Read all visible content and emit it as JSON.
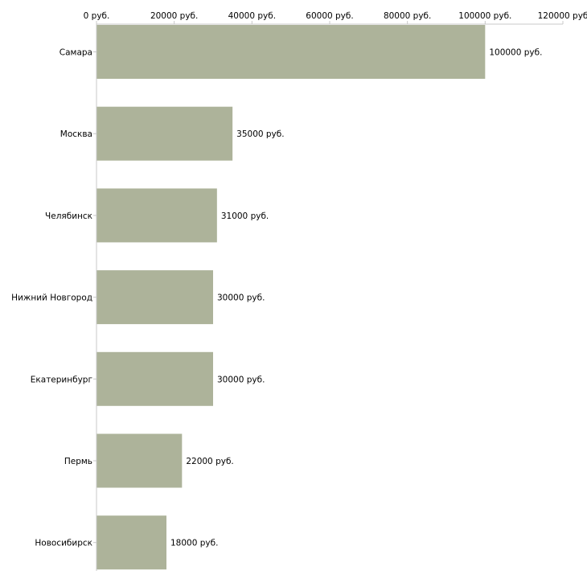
{
  "chart_data": {
    "type": "bar",
    "orientation": "horizontal",
    "title": "",
    "xlabel": "",
    "ylabel": "",
    "categories": [
      "Самара",
      "Москва",
      "Челябинск",
      "Нижний Новгород",
      "Екатеринбург",
      "Пермь",
      "Новосибирск"
    ],
    "values": [
      100000,
      35000,
      31000,
      30000,
      30000,
      22000,
      18000
    ],
    "data_labels": [
      "100000 руб.",
      "35000 руб.",
      "31000 руб.",
      "30000 руб.",
      "30000 руб.",
      "22000 руб.",
      "18000 руб."
    ],
    "xlim": [
      0,
      120000
    ],
    "xticks": [
      0,
      20000,
      40000,
      60000,
      80000,
      100000,
      120000
    ],
    "xtick_labels": [
      "0 руб.",
      "20000 руб.",
      "40000 руб.",
      "60000 руб.",
      "80000 руб.",
      "100000 руб.",
      "120000 руб"
    ],
    "axis_position": "top",
    "grid": false,
    "legend": "none",
    "bar_color": "#adb39a",
    "axis_color": "#c8c8c8",
    "text_color": "#000000"
  }
}
